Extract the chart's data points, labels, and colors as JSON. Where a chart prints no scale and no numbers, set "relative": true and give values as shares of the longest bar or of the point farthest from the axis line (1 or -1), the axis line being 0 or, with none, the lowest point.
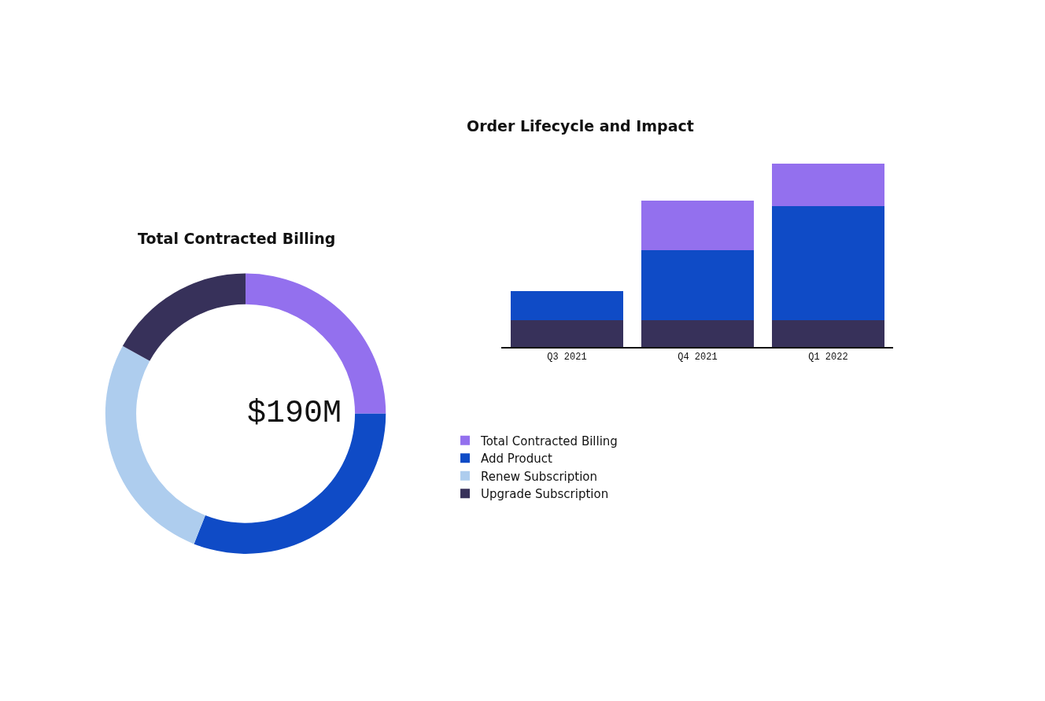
{
  "chart_data": [
    {
      "type": "donut",
      "title": "Total Contracted Billing",
      "annotations": [
        "$190M"
      ],
      "categories": [
        "Total Contracted Billing",
        "Add Product",
        "Renew Subscription",
        "Upgrade Subscription"
      ],
      "values": [
        25,
        31,
        27,
        17
      ],
      "colors": [
        "#9370ee",
        "#0f4bc6",
        "#aecdee",
        "#37315a"
      ],
      "legend": "right"
    },
    {
      "type": "bar",
      "title": "Order Lifecycle and Impact",
      "categories": [
        "Q3 2021",
        "Q4 2021",
        "Q1 2022"
      ],
      "relative": true,
      "stacked": true,
      "series": [
        {
          "color": "#37315a",
          "values": [
            0.147,
            0.147,
            0.147
          ]
        },
        {
          "color": "#0f4bc6",
          "values": [
            0.157,
            0.382,
            0.622
          ]
        },
        {
          "color": "#9370ee",
          "values": [
            null,
            0.272,
            0.231
          ]
        }
      ]
    }
  ]
}
